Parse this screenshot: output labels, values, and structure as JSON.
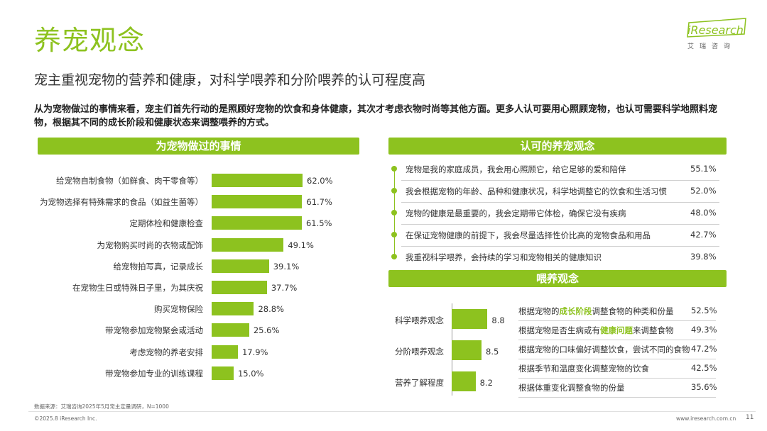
{
  "header": {
    "title": "养宠观念",
    "subtitle": "宠主重视宠物的营养和健康，对科学喂养和分阶喂养的认可程度高",
    "logo_text": "iResearch",
    "logo_sub": "艾瑞咨询",
    "intro": "从为宠物做过的事情来看，宠主们首先行动的是照顾好宠物的饮食和身体健康，其次才考虑衣物时尚等其他方面。更多人认可要用心照顾宠物，也认可需要科学地照料宠物，根据其不同的成长阶段和健康状态来调整喂养的方式。"
  },
  "colors": {
    "accent": "#8dc21f"
  },
  "sections": {
    "left": "为宠物做过的事情",
    "concepts": "认可的养宠观念",
    "feeding": "喂养观念"
  },
  "footer": {
    "source": "数据来源：艾瑞咨询2025年5月宠主定量调研，N=1000",
    "copyright": "©2025.8 iResearch Inc.",
    "url": "www.iresearch.com.cn",
    "page": "11"
  },
  "chart_data": [
    {
      "type": "bar",
      "orientation": "horizontal",
      "title": "为宠物做过的事情",
      "categories": [
        "给宠物自制食物（如鲜食、肉干零食等）",
        "为宠物选择有特殊需求的食品（如益生菌等）",
        "定期体检和健康检查",
        "为宠物购买时尚的衣物或配饰",
        "给宠物拍写真，记录成长",
        "在宠物生日或特殊日子里，为其庆祝",
        "购买宠物保险",
        "带宠物参加宠物聚会或活动",
        "考虑宠物的养老安排",
        "带宠物参加专业的训练课程"
      ],
      "values": [
        62.0,
        61.7,
        61.5,
        49.1,
        39.1,
        37.7,
        28.8,
        25.6,
        17.9,
        15.0
      ],
      "value_labels": [
        "62.0%",
        "61.7%",
        "61.5%",
        "49.1%",
        "39.1%",
        "37.7%",
        "28.8%",
        "25.6%",
        "17.9%",
        "15.0%"
      ]
    },
    {
      "type": "table",
      "title": "认可的养宠观念",
      "rows": [
        {
          "text": "宠物是我的家庭成员，我会用心照顾它，给它足够的爱和陪伴",
          "value": "55.1%"
        },
        {
          "text": "我会根据宠物的年龄、品种和健康状况，科学地调整它的饮食和生活习惯",
          "value": "52.0%"
        },
        {
          "text": "宠物的健康是最重要的，我会定期带它体检，确保它没有疾病",
          "value": "48.0%"
        },
        {
          "text": "在保证宠物健康的前提下，我会尽量选择性价比高的宠物食品和用品",
          "value": "42.7%"
        },
        {
          "text": "我重视科学喂养，会持续的学习和宠物相关的健康知识",
          "value": "39.8%"
        }
      ]
    },
    {
      "type": "bar",
      "orientation": "horizontal",
      "title": "喂养观念",
      "categories": [
        "科学喂养观念",
        "分阶喂养观念",
        "营养了解程度"
      ],
      "values": [
        8.8,
        8.5,
        8.2
      ],
      "value_labels": [
        "8.8",
        "8.5",
        "8.2"
      ]
    },
    {
      "type": "table",
      "title": "喂养观念",
      "rows": [
        {
          "pre": "根据宠物的",
          "hl": "成长阶段",
          "post": "调整食物的种类和份量",
          "value": "52.5%"
        },
        {
          "pre": "根据宠物是否生病或有",
          "hl": "健康问题",
          "post": "来调整食物",
          "value": "49.3%"
        },
        {
          "pre": "根据宠物的口味偏好调整饮食，尝试不同的食物",
          "hl": "",
          "post": "",
          "value": "47.2%"
        },
        {
          "pre": "根据季节和温度变化调整宠物的饮食",
          "hl": "",
          "post": "",
          "value": "42.5%"
        },
        {
          "pre": "根据体重变化调整食物的份量",
          "hl": "",
          "post": "",
          "value": "35.6%"
        }
      ]
    }
  ]
}
